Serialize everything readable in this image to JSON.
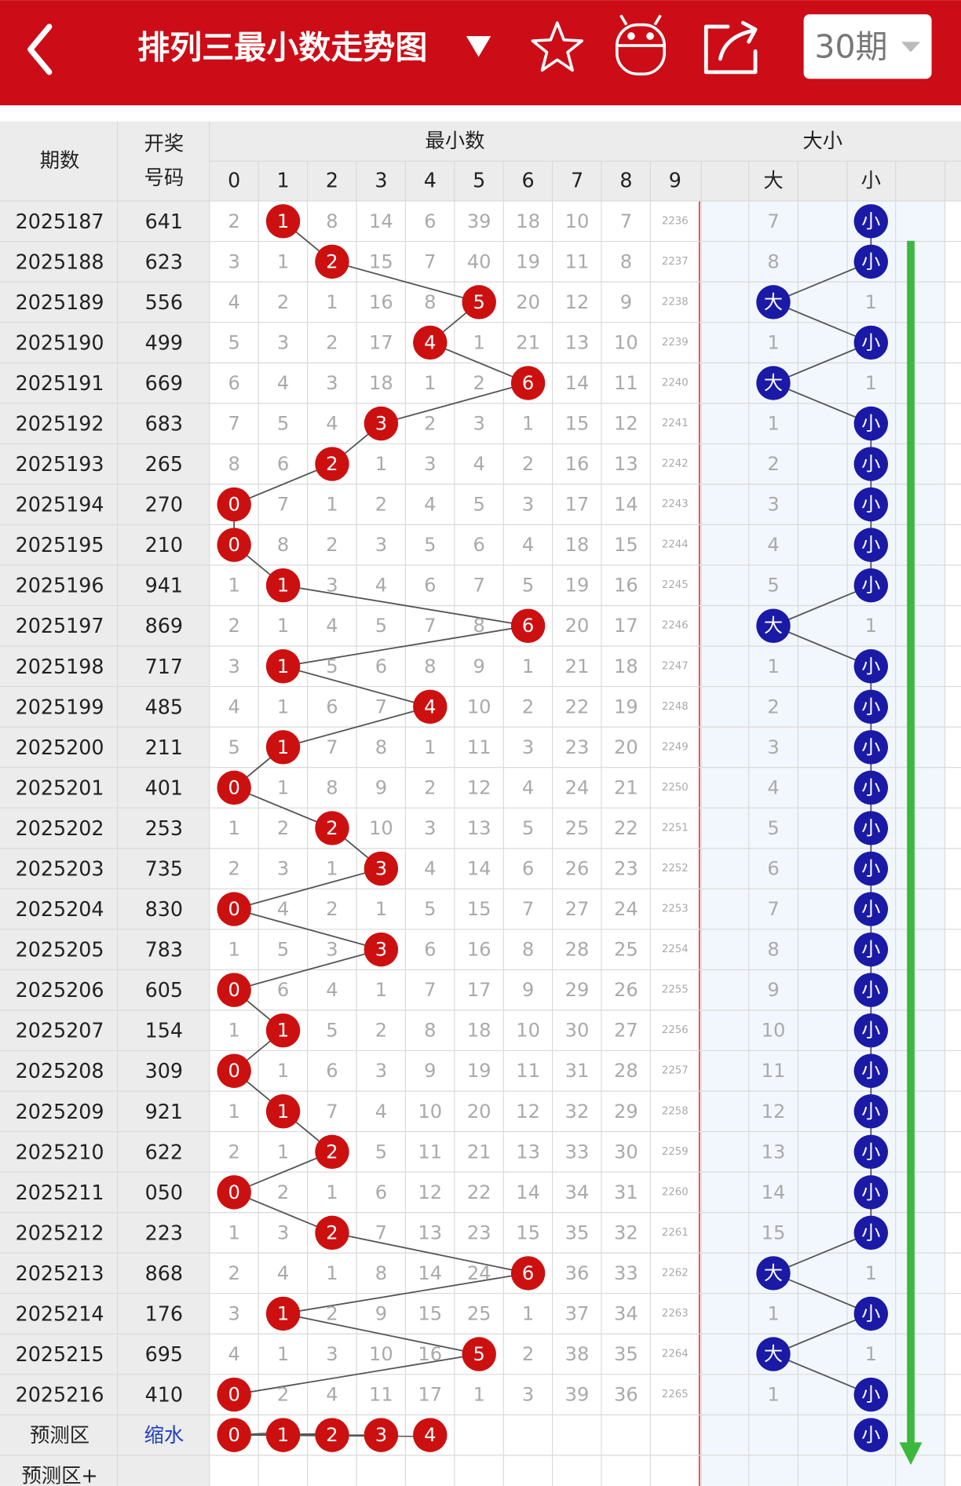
{
  "header": {
    "title": "排列三最小数走势图",
    "period_select": "30期"
  },
  "table": {
    "columns": {
      "issue": "期数",
      "draw": [
        "开奖",
        "号码"
      ],
      "min_group": "最小数",
      "digits": [
        0,
        1,
        2,
        3,
        4,
        5,
        6,
        7,
        8,
        9
      ],
      "size_group": "大小",
      "sizes": [
        "大",
        "小"
      ]
    },
    "rows": [
      {
        "issue": "2025187",
        "draw": "641",
        "min": [
          2,
          "1",
          8,
          14,
          6,
          39,
          18,
          10,
          7,
          2236
        ],
        "size": [
          7,
          "小"
        ]
      },
      {
        "issue": "2025188",
        "draw": "623",
        "min": [
          3,
          1,
          "2",
          15,
          7,
          40,
          19,
          11,
          8,
          2237
        ],
        "size": [
          8,
          "小"
        ]
      },
      {
        "issue": "2025189",
        "draw": "556",
        "min": [
          4,
          2,
          1,
          16,
          8,
          "5",
          20,
          12,
          9,
          2238
        ],
        "size": [
          "大",
          1
        ]
      },
      {
        "issue": "2025190",
        "draw": "499",
        "min": [
          5,
          3,
          2,
          17,
          "4",
          1,
          21,
          13,
          10,
          2239
        ],
        "size": [
          1,
          "小"
        ]
      },
      {
        "issue": "2025191",
        "draw": "669",
        "min": [
          6,
          4,
          3,
          18,
          1,
          2,
          "6",
          14,
          11,
          2240
        ],
        "size": [
          "大",
          1
        ]
      },
      {
        "issue": "2025192",
        "draw": "683",
        "min": [
          7,
          5,
          4,
          "3",
          2,
          3,
          1,
          15,
          12,
          2241
        ],
        "size": [
          1,
          "小"
        ]
      },
      {
        "issue": "2025193",
        "draw": "265",
        "min": [
          8,
          6,
          "2",
          1,
          3,
          4,
          2,
          16,
          13,
          2242
        ],
        "size": [
          2,
          "小"
        ]
      },
      {
        "issue": "2025194",
        "draw": "270",
        "min": [
          "0",
          7,
          1,
          2,
          4,
          5,
          3,
          17,
          14,
          2243
        ],
        "size": [
          3,
          "小"
        ]
      },
      {
        "issue": "2025195",
        "draw": "210",
        "min": [
          "0",
          8,
          2,
          3,
          5,
          6,
          4,
          18,
          15,
          2244
        ],
        "size": [
          4,
          "小"
        ]
      },
      {
        "issue": "2025196",
        "draw": "941",
        "min": [
          1,
          "1",
          3,
          4,
          6,
          7,
          5,
          19,
          16,
          2245
        ],
        "size": [
          5,
          "小"
        ]
      },
      {
        "issue": "2025197",
        "draw": "869",
        "min": [
          2,
          1,
          4,
          5,
          7,
          8,
          "6",
          20,
          17,
          2246
        ],
        "size": [
          "大",
          1
        ]
      },
      {
        "issue": "2025198",
        "draw": "717",
        "min": [
          3,
          "1",
          5,
          6,
          8,
          9,
          1,
          21,
          18,
          2247
        ],
        "size": [
          1,
          "小"
        ]
      },
      {
        "issue": "2025199",
        "draw": "485",
        "min": [
          4,
          1,
          6,
          7,
          "4",
          10,
          2,
          22,
          19,
          2248
        ],
        "size": [
          2,
          "小"
        ]
      },
      {
        "issue": "2025200",
        "draw": "211",
        "min": [
          5,
          "1",
          7,
          8,
          1,
          11,
          3,
          23,
          20,
          2249
        ],
        "size": [
          3,
          "小"
        ]
      },
      {
        "issue": "2025201",
        "draw": "401",
        "min": [
          "0",
          1,
          8,
          9,
          2,
          12,
          4,
          24,
          21,
          2250
        ],
        "size": [
          4,
          "小"
        ]
      },
      {
        "issue": "2025202",
        "draw": "253",
        "min": [
          1,
          2,
          "2",
          10,
          3,
          13,
          5,
          25,
          22,
          2251
        ],
        "size": [
          5,
          "小"
        ]
      },
      {
        "issue": "2025203",
        "draw": "735",
        "min": [
          2,
          3,
          1,
          "3",
          4,
          14,
          6,
          26,
          23,
          2252
        ],
        "size": [
          6,
          "小"
        ]
      },
      {
        "issue": "2025204",
        "draw": "830",
        "min": [
          "0",
          4,
          2,
          1,
          5,
          15,
          7,
          27,
          24,
          2253
        ],
        "size": [
          7,
          "小"
        ]
      },
      {
        "issue": "2025205",
        "draw": "783",
        "min": [
          1,
          5,
          3,
          "3",
          6,
          16,
          8,
          28,
          25,
          2254
        ],
        "size": [
          8,
          "小"
        ]
      },
      {
        "issue": "2025206",
        "draw": "605",
        "min": [
          "0",
          6,
          4,
          1,
          7,
          17,
          9,
          29,
          26,
          2255
        ],
        "size": [
          9,
          "小"
        ]
      },
      {
        "issue": "2025207",
        "draw": "154",
        "min": [
          1,
          "1",
          5,
          2,
          8,
          18,
          10,
          30,
          27,
          2256
        ],
        "size": [
          10,
          "小"
        ]
      },
      {
        "issue": "2025208",
        "draw": "309",
        "min": [
          "0",
          1,
          6,
          3,
          9,
          19,
          11,
          31,
          28,
          2257
        ],
        "size": [
          11,
          "小"
        ]
      },
      {
        "issue": "2025209",
        "draw": "921",
        "min": [
          1,
          "1",
          7,
          4,
          10,
          20,
          12,
          32,
          29,
          2258
        ],
        "size": [
          12,
          "小"
        ]
      },
      {
        "issue": "2025210",
        "draw": "622",
        "min": [
          2,
          1,
          "2",
          5,
          11,
          21,
          13,
          33,
          30,
          2259
        ],
        "size": [
          13,
          "小"
        ]
      },
      {
        "issue": "2025211",
        "draw": "050",
        "min": [
          "0",
          2,
          1,
          6,
          12,
          22,
          14,
          34,
          31,
          2260
        ],
        "size": [
          14,
          "小"
        ]
      },
      {
        "issue": "2025212",
        "draw": "223",
        "min": [
          1,
          3,
          "2",
          7,
          13,
          23,
          15,
          35,
          32,
          2261
        ],
        "size": [
          15,
          "小"
        ]
      },
      {
        "issue": "2025213",
        "draw": "868",
        "min": [
          2,
          4,
          1,
          8,
          14,
          24,
          "6",
          36,
          33,
          2262
        ],
        "size": [
          "大",
          1
        ]
      },
      {
        "issue": "2025214",
        "draw": "176",
        "min": [
          3,
          "1",
          2,
          9,
          15,
          25,
          1,
          37,
          34,
          2263
        ],
        "size": [
          1,
          "小"
        ]
      },
      {
        "issue": "2025215",
        "draw": "695",
        "min": [
          4,
          1,
          3,
          10,
          16,
          "5",
          2,
          38,
          35,
          2264
        ],
        "size": [
          "大",
          1
        ]
      },
      {
        "issue": "2025216",
        "draw": "410",
        "min": [
          "0",
          2,
          4,
          11,
          17,
          1,
          3,
          39,
          36,
          2265
        ],
        "size": [
          1,
          "小"
        ]
      }
    ],
    "forecast": {
      "label": "预测区",
      "draw": "缩水",
      "min": [
        "0",
        "1",
        "2",
        "3",
        "4"
      ],
      "size": [
        null,
        "小"
      ]
    },
    "forecast_plus": {
      "label": "预测区+"
    }
  }
}
